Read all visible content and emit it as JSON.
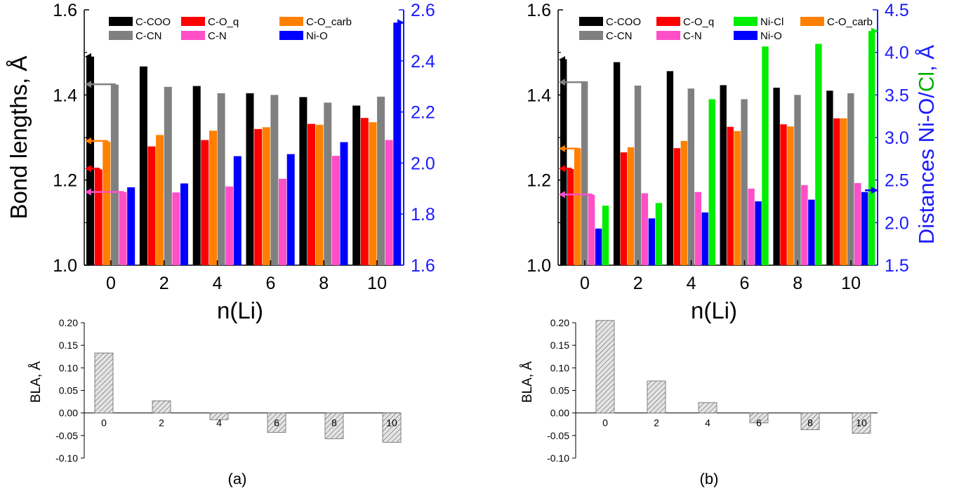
{
  "colors": {
    "C-COO": "#000000",
    "C-O_q": "#ff0000",
    "C-O_carb": "#ff8000",
    "C-CN": "#808080",
    "C-N": "#ff4fc8",
    "Ni-O": "#0000ff",
    "Ni-Cl": "#00ee00",
    "right_axis": "#1a1aff",
    "bla_fill": "#e4e4e4"
  },
  "chart_data": [
    {
      "type": "bar",
      "panel_label": "(a)",
      "ylabel": "Bond lengths, Å",
      "xlabel": "n(Li)",
      "ylim": [
        1.0,
        1.6
      ],
      "yticks": [
        "1.0",
        "1.2",
        "1.4",
        "1.6"
      ],
      "y2label": "",
      "y2lim": [
        1.6,
        2.6
      ],
      "y2ticks": [
        "1.6",
        "1.8",
        "2.0",
        "2.2",
        "2.4",
        "2.6"
      ],
      "categories": [
        "0",
        "2",
        "4",
        "6",
        "8",
        "10"
      ],
      "legend": [
        [
          "C-COO",
          "C-O_q",
          "C-O_carb"
        ],
        [
          "C-CN",
          "C-N",
          "Ni-O"
        ]
      ],
      "legend_placement": "top",
      "series": [
        {
          "name": "C-COO",
          "axis": "left",
          "values": [
            1.49,
            1.467,
            1.421,
            1.404,
            1.395,
            1.375
          ]
        },
        {
          "name": "C-O_q",
          "axis": "left",
          "values": [
            1.225,
            1.279,
            1.294,
            1.32,
            1.332,
            1.346
          ]
        },
        {
          "name": "C-O_carb",
          "axis": "left",
          "values": [
            1.29,
            1.306,
            1.316,
            1.324,
            1.33,
            1.336
          ]
        },
        {
          "name": "C-CN",
          "axis": "left",
          "values": [
            1.424,
            1.419,
            1.404,
            1.4,
            1.382,
            1.396
          ]
        },
        {
          "name": "C-N",
          "axis": "left",
          "values": [
            1.172,
            1.171,
            1.185,
            1.203,
            1.257,
            1.294
          ]
        },
        {
          "name": "Ni-O",
          "axis": "right",
          "values": [
            1.905,
            1.92,
            2.027,
            2.035,
            2.082,
            2.55
          ]
        }
      ],
      "markers": [
        {
          "series": "C-COO",
          "value": 1.49,
          "axis": "left",
          "direction": "left"
        },
        {
          "series": "C-CN",
          "value": 1.425,
          "axis": "left",
          "direction": "left"
        },
        {
          "series": "C-O_carb",
          "value": 1.292,
          "axis": "left",
          "direction": "left"
        },
        {
          "series": "C-O_q",
          "value": 1.227,
          "axis": "left",
          "direction": "left"
        },
        {
          "series": "C-N",
          "value": 1.172,
          "axis": "left",
          "direction": "left"
        },
        {
          "series": "Ni-O",
          "value": 2.55,
          "axis": "right",
          "direction": "right"
        }
      ],
      "bla": {
        "ylabel": "BLA, Å",
        "ylim": [
          -0.1,
          0.2
        ],
        "yticks": [
          "0.20",
          "0.15",
          "0.10",
          "0.05",
          "0.00",
          "-0.05",
          "-0.10"
        ],
        "categories": [
          "0",
          "2",
          "4",
          "6",
          "8",
          "10"
        ],
        "values": [
          0.133,
          0.027,
          -0.015,
          -0.043,
          -0.057,
          -0.065
        ]
      }
    },
    {
      "type": "bar",
      "panel_label": "(b)",
      "ylabel": "",
      "xlabel": "n(Li)",
      "ylim": [
        1.0,
        1.6
      ],
      "yticks": [
        "1.0",
        "1.2",
        "1.4",
        "1.6"
      ],
      "y2label": "Distances Ni-O/Cl, Å",
      "y2label_parts": [
        "Distances Ni-O/",
        "Cl",
        ", Å"
      ],
      "y2lim": [
        1.5,
        4.5
      ],
      "y2ticks": [
        "1.5",
        "2.0",
        "2.5",
        "3.0",
        "3.5",
        "4.0",
        "4.5"
      ],
      "categories": [
        "0",
        "2",
        "4",
        "6",
        "8",
        "10"
      ],
      "legend": [
        [
          "C-COO",
          "C-O_q",
          "Ni-Cl",
          "C-O_carb"
        ],
        [
          "C-CN",
          "C-N",
          "Ni-O"
        ]
      ],
      "legend_placement": "top",
      "series": [
        {
          "name": "C-COO",
          "axis": "left",
          "values": [
            1.484,
            1.477,
            1.456,
            1.423,
            1.417,
            1.41
          ]
        },
        {
          "name": "C-O_q",
          "axis": "left",
          "values": [
            1.226,
            1.265,
            1.275,
            1.325,
            1.331,
            1.345
          ]
        },
        {
          "name": "C-O_carb",
          "axis": "left",
          "values": [
            1.275,
            1.277,
            1.292,
            1.315,
            1.326,
            1.345
          ]
        },
        {
          "name": "C-CN",
          "axis": "left",
          "values": [
            1.432,
            1.422,
            1.415,
            1.39,
            1.4,
            1.404
          ]
        },
        {
          "name": "C-N",
          "axis": "left",
          "values": [
            1.165,
            1.169,
            1.172,
            1.18,
            1.188,
            1.193
          ]
        },
        {
          "name": "Ni-O",
          "axis": "right",
          "values": [
            1.93,
            2.05,
            2.12,
            2.25,
            2.27,
            2.36
          ]
        },
        {
          "name": "Ni-Cl",
          "axis": "right",
          "values": [
            2.2,
            2.23,
            3.45,
            4.07,
            4.1,
            4.25
          ]
        }
      ],
      "markers": [
        {
          "series": "C-COO",
          "value": 1.483,
          "axis": "left",
          "direction": "left"
        },
        {
          "series": "C-CN",
          "value": 1.43,
          "axis": "left",
          "direction": "left"
        },
        {
          "series": "C-O_carb",
          "value": 1.274,
          "axis": "left",
          "direction": "left"
        },
        {
          "series": "C-O_q",
          "value": 1.227,
          "axis": "left",
          "direction": "left"
        },
        {
          "series": "C-N",
          "value": 1.166,
          "axis": "left",
          "direction": "left"
        },
        {
          "series": "Ni-Cl",
          "value": 4.25,
          "axis": "right",
          "direction": "right"
        },
        {
          "series": "Ni-O",
          "value": 2.38,
          "axis": "right",
          "direction": "right"
        }
      ],
      "bla": {
        "ylabel": "BLA, Å",
        "ylim": [
          -0.1,
          0.2
        ],
        "yticks": [
          "0.20",
          "0.15",
          "0.10",
          "0.05",
          "0.00",
          "-0.05",
          "-0.10"
        ],
        "categories": [
          "0",
          "2",
          "4",
          "6",
          "8",
          "10"
        ],
        "values": [
          0.205,
          0.071,
          0.023,
          -0.022,
          -0.037,
          -0.045
        ]
      }
    }
  ]
}
